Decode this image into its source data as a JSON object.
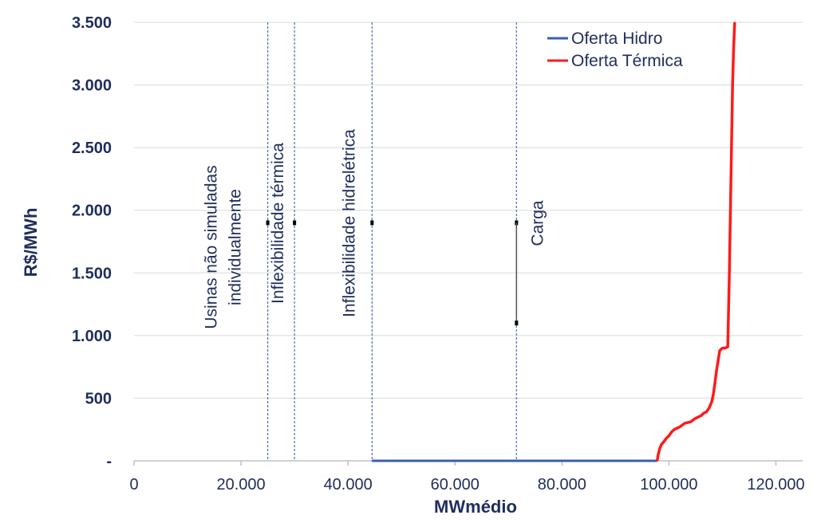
{
  "chart_data": {
    "type": "line",
    "title": "",
    "xlabel": "MWmédio",
    "ylabel": "R$/MWh",
    "xlim": [
      0,
      125000
    ],
    "ylim": [
      0,
      3500
    ],
    "xticks": [
      0,
      20000,
      40000,
      60000,
      80000,
      100000,
      120000
    ],
    "xtick_labels": [
      "0",
      "20.000",
      "40.000",
      "60.000",
      "80.000",
      "100.000",
      "120.000"
    ],
    "yticks": [
      0,
      500,
      1000,
      1500,
      2000,
      2500,
      3000,
      3500
    ],
    "ytick_labels": [
      "-",
      "500",
      "1.000",
      "1.500",
      "2.000",
      "2.500",
      "3.000",
      "3.500"
    ],
    "grid": "horizontal",
    "legend_position": "top-right",
    "series": [
      {
        "name": "Oferta Hidro",
        "color": "#3a5fb0",
        "x": [
          44500,
          97800
        ],
        "y": [
          0,
          0
        ]
      },
      {
        "name": "Oferta Térmica",
        "color": "#ff1a1a",
        "x": [
          97800,
          98000,
          98300,
          98600,
          99000,
          99500,
          100000,
          100500,
          101000,
          101500,
          102000,
          103000,
          104000,
          105000,
          106000,
          106500,
          107000,
          107500,
          108000,
          108300,
          108600,
          108900,
          109200,
          109500,
          110000,
          110500,
          111000,
          111100,
          111300,
          111500,
          111700,
          111900,
          112100,
          112300
        ],
        "y": [
          0,
          50,
          100,
          130,
          150,
          180,
          200,
          230,
          250,
          260,
          270,
          300,
          310,
          340,
          360,
          380,
          390,
          420,
          470,
          530,
          620,
          720,
          800,
          880,
          900,
          900,
          910,
          1100,
          1500,
          2000,
          2500,
          3000,
          3300,
          3500
        ]
      }
    ],
    "annotations": [
      {
        "x": 25000,
        "lines": [
          "Usinas não simuladas",
          "individualmente"
        ]
      },
      {
        "x": 30000,
        "lines": [
          "Inflexibilidade térmica"
        ]
      },
      {
        "x": 44500,
        "lines": [
          "Inflexibilidade hidrelétrica"
        ]
      },
      {
        "x": 71500,
        "lines": [
          "Carga"
        ]
      }
    ]
  }
}
